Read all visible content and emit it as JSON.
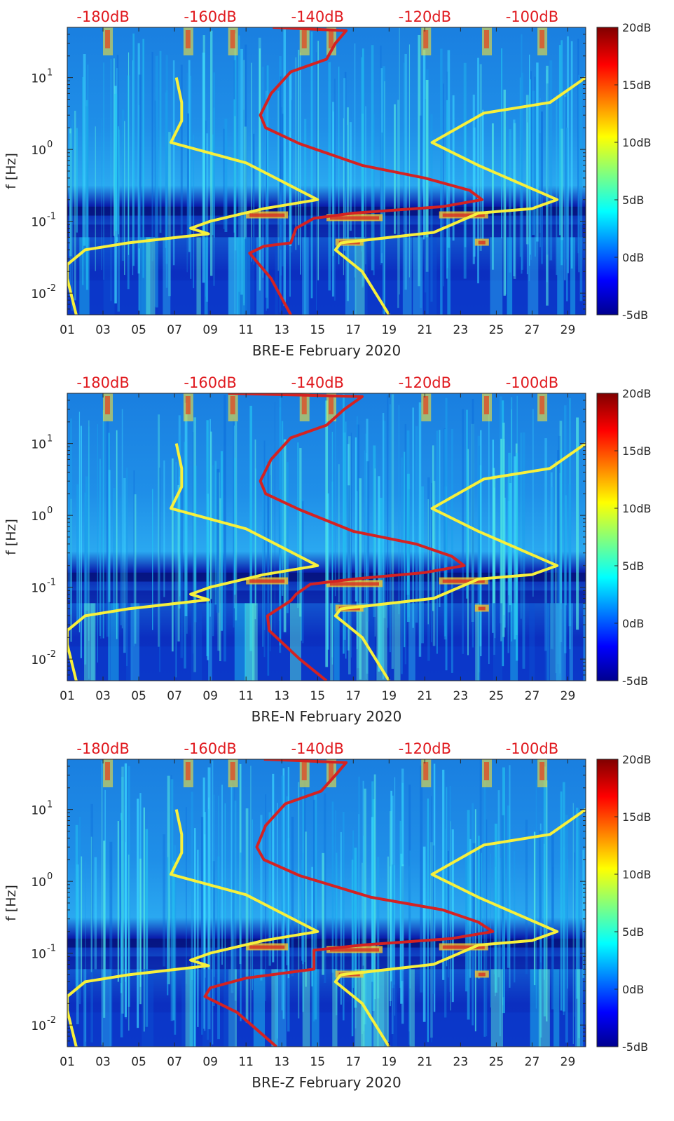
{
  "chart_data": {
    "type": "heatmap",
    "description_series": [
      "spectrogram",
      "yellow-min-max-noise-model",
      "red-median-psd"
    ],
    "common": {
      "x_tick_labels": [
        "01",
        "03",
        "05",
        "07",
        "09",
        "11",
        "13",
        "15",
        "17",
        "19",
        "21",
        "23",
        "25",
        "27",
        "29"
      ],
      "x_tick_days": [
        1,
        3,
        5,
        7,
        9,
        11,
        13,
        15,
        17,
        19,
        21,
        23,
        25,
        27,
        29
      ],
      "x_range_days": [
        1,
        30
      ],
      "y_label": "f [Hz]",
      "y_range_hz": [
        0.005,
        50
      ],
      "y_scale": "log",
      "y_tick_values": [
        0.01,
        0.1,
        1,
        10
      ],
      "y_tick_bases": [
        "10",
        "10",
        "10",
        "10"
      ],
      "y_tick_exponents": [
        "-2",
        "-1",
        "0",
        "1"
      ],
      "top_axis_labels": [
        "-180dB",
        "-160dB",
        "-140dB",
        "-120dB",
        "-100dB"
      ],
      "top_axis_days": [
        3,
        9,
        15,
        21,
        27
      ],
      "colorbar": {
        "range_db": [
          -5,
          20
        ],
        "tick_values": [
          20,
          15,
          10,
          5,
          0,
          -5
        ],
        "tick_labels": [
          "20dB",
          "15dB",
          "10dB",
          "5dB",
          "0dB",
          "-5dB"
        ]
      },
      "colors": {
        "noise_model": "#f7f03c",
        "median_psd": "#d42222",
        "top_axis_text": "#e0191e"
      },
      "noise_model_curves": [
        {
          "name": "low-noise-model",
          "points": [
            [
              7.1,
              10
            ],
            [
              7.4,
              4.5
            ],
            [
              7.4,
              2.5
            ],
            [
              6.8,
              1.25
            ],
            [
              11,
              0.65
            ],
            [
              15,
              0.2
            ],
            [
              12,
              0.15
            ],
            [
              9,
              0.1
            ],
            [
              7.9,
              0.08
            ],
            [
              8.9,
              0.067
            ],
            [
              4.4,
              0.05
            ],
            [
              2,
              0.04
            ],
            [
              1,
              0.025
            ],
            [
              1,
              0.016
            ],
            [
              1.5,
              0.005
            ]
          ]
        },
        {
          "name": "high-noise-model",
          "points": [
            [
              30,
              10
            ],
            [
              28,
              4.5
            ],
            [
              24.3,
              3.2
            ],
            [
              21.4,
              1.25
            ],
            [
              24,
              0.6
            ],
            [
              28.4,
              0.2
            ],
            [
              27,
              0.15
            ],
            [
              24,
              0.13
            ],
            [
              21.5,
              0.07
            ],
            [
              16.3,
              0.05
            ],
            [
              16,
              0.04
            ],
            [
              17.5,
              0.02
            ],
            [
              19,
              0.005
            ]
          ]
        }
      ]
    },
    "panels": [
      {
        "component": "BRE-E",
        "xlabel": "BRE-E February 2020",
        "median_psd_points": [
          [
            12.5,
            50
          ],
          [
            16.6,
            45
          ],
          [
            16,
            30
          ],
          [
            15.5,
            18
          ],
          [
            13.5,
            12
          ],
          [
            12.4,
            6
          ],
          [
            11.8,
            3
          ],
          [
            12.1,
            2
          ],
          [
            14,
            1.2
          ],
          [
            17.5,
            0.6
          ],
          [
            21,
            0.4
          ],
          [
            23.5,
            0.27
          ],
          [
            24.2,
            0.2
          ],
          [
            22,
            0.16
          ],
          [
            17,
            0.13
          ],
          [
            14.8,
            0.11
          ],
          [
            13.8,
            0.08
          ],
          [
            13.5,
            0.05
          ],
          [
            12,
            0.045
          ],
          [
            11.2,
            0.036
          ],
          [
            12.4,
            0.016
          ],
          [
            13.5,
            0.005
          ]
        ]
      },
      {
        "component": "BRE-N",
        "xlabel": "BRE-N February 2020",
        "median_psd_points": [
          [
            10,
            50
          ],
          [
            17.5,
            45
          ],
          [
            16.5,
            30
          ],
          [
            15.5,
            18
          ],
          [
            13.5,
            12
          ],
          [
            12.4,
            6
          ],
          [
            11.8,
            3
          ],
          [
            12.1,
            2
          ],
          [
            14,
            1.2
          ],
          [
            17,
            0.6
          ],
          [
            20.5,
            0.4
          ],
          [
            22.5,
            0.27
          ],
          [
            23.2,
            0.2
          ],
          [
            21,
            0.16
          ],
          [
            17,
            0.13
          ],
          [
            14.6,
            0.11
          ],
          [
            13.8,
            0.08
          ],
          [
            13.5,
            0.065
          ],
          [
            12.2,
            0.04
          ],
          [
            12.3,
            0.025
          ],
          [
            14,
            0.01
          ],
          [
            15.5,
            0.005
          ]
        ]
      },
      {
        "component": "BRE-Z",
        "xlabel": "BRE-Z February 2020",
        "median_psd_points": [
          [
            12,
            50
          ],
          [
            16.6,
            45
          ],
          [
            16,
            30
          ],
          [
            15.2,
            18
          ],
          [
            13.2,
            12
          ],
          [
            12.1,
            6
          ],
          [
            11.6,
            3
          ],
          [
            12,
            2
          ],
          [
            14,
            1.2
          ],
          [
            18,
            0.6
          ],
          [
            22,
            0.4
          ],
          [
            24,
            0.27
          ],
          [
            24.8,
            0.2
          ],
          [
            22.5,
            0.16
          ],
          [
            17.5,
            0.13
          ],
          [
            14.8,
            0.11
          ],
          [
            14.8,
            0.06
          ],
          [
            11,
            0.045
          ],
          [
            9,
            0.033
          ],
          [
            8.7,
            0.025
          ],
          [
            10.5,
            0.015
          ],
          [
            12.7,
            0.005
          ]
        ]
      }
    ]
  }
}
